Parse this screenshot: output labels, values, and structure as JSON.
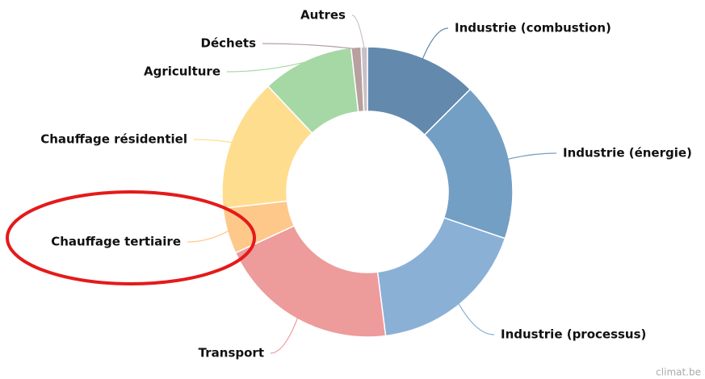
{
  "chart_data": {
    "type": "donut",
    "categories": [
      "Industrie (combustion)",
      "Industrie (énergie)",
      "Industrie (processus)",
      "Transport",
      "Chauffage tertiaire",
      "Chauffage résidentiel",
      "Agriculture",
      "Déchets",
      "Autres"
    ],
    "values": [
      12.5,
      17.7,
      17.8,
      20.1,
      5.1,
      14.8,
      10.2,
      1.1,
      0.7
    ],
    "colors": [
      "#6389ad",
      "#739fc4",
      "#8ab0d6",
      "#ee9b9b",
      "#fdc88a",
      "#ffdd8e",
      "#a6d8a5",
      "#b7a09e",
      "#c9bfc9"
    ],
    "credit": "climat.be"
  }
}
